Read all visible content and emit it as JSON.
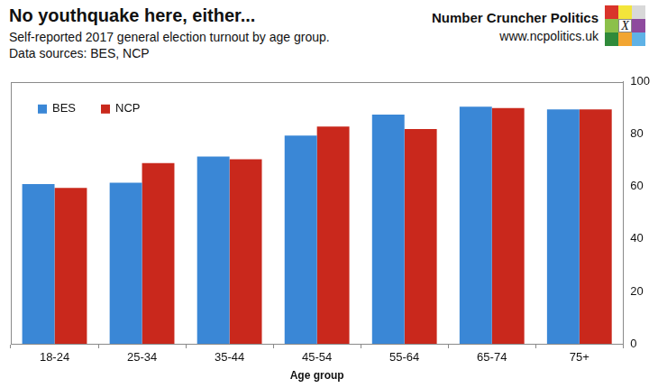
{
  "chart_data": {
    "type": "bar",
    "title": "No youthquake here, either...",
    "subtitle": [
      "Self-reported 2017 general election turnout by age group.",
      "Data sources: BES, NCP"
    ],
    "x_label": "Age group",
    "categories": [
      "18-24",
      "25-34",
      "35-44",
      "45-54",
      "55-64",
      "65-74",
      "75+"
    ],
    "series": [
      {
        "name": "BES",
        "color": "#3a87d6",
        "values": [
          61,
          61.5,
          71.5,
          79.5,
          87.5,
          90.5,
          89.5
        ]
      },
      {
        "name": "NCP",
        "color": "#c9281c",
        "values": [
          59.5,
          69,
          70.5,
          83,
          82,
          90,
          89.5
        ]
      }
    ],
    "ylim": [
      0,
      100
    ],
    "yticks": [
      0,
      20,
      40,
      60,
      80,
      100
    ],
    "grid": false,
    "legend": "top-left"
  },
  "brand": {
    "name": "Number Cruncher Politics",
    "url": "www.ncpolitics.uk",
    "logo": "X"
  }
}
